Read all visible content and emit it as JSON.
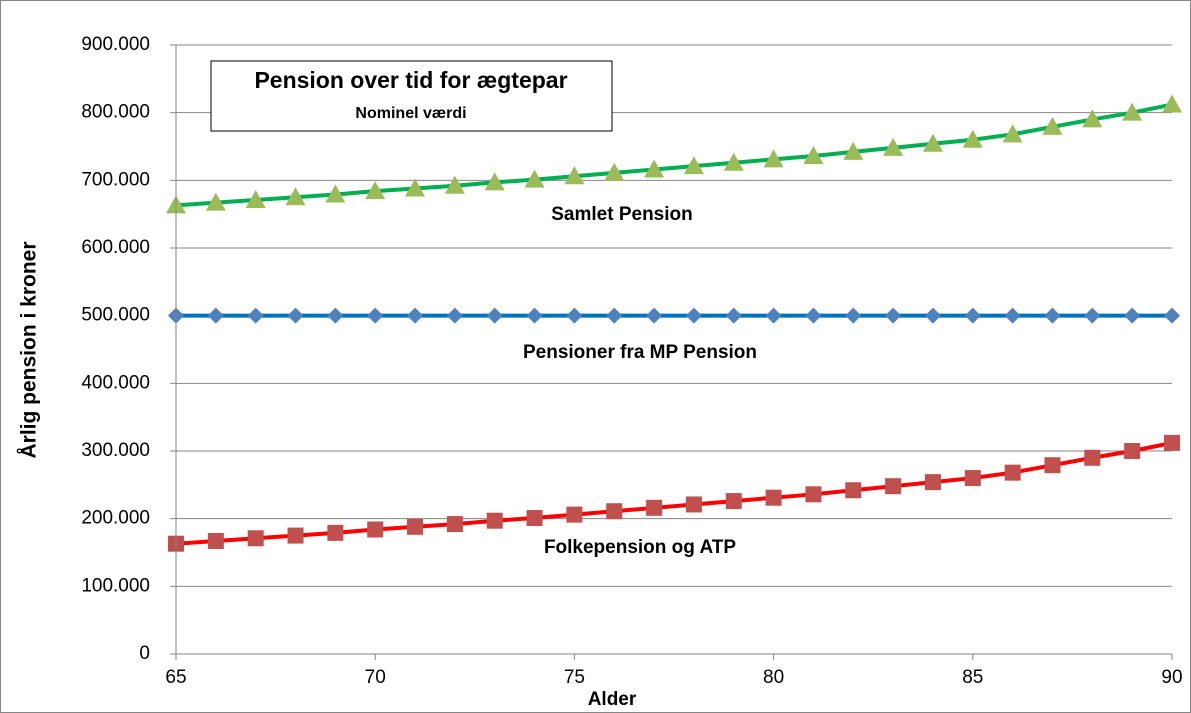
{
  "chart_data": {
    "type": "line",
    "title": "Pension over tid for ægtepar",
    "subtitle": "Nominel værdi",
    "x_label": "Alder",
    "y_label": "Årlig pension i kroner",
    "x": [
      65,
      66,
      67,
      68,
      69,
      70,
      71,
      72,
      73,
      74,
      75,
      76,
      77,
      78,
      79,
      80,
      81,
      82,
      83,
      84,
      85,
      86,
      87,
      88,
      89,
      90
    ],
    "xlim": [
      65,
      90
    ],
    "xticks": [
      65,
      70,
      75,
      80,
      85,
      90
    ],
    "ylim": [
      0,
      900000
    ],
    "yticks": [
      0,
      {
        "value": 100000,
        "label": "100.000"
      },
      {
        "value": 200000,
        "label": "200.000"
      },
      {
        "value": 300000,
        "label": "300.000"
      },
      {
        "value": 400000,
        "label": "400.000"
      },
      {
        "value": 500000,
        "label": "500.000"
      },
      {
        "value": 600000,
        "label": "600.000"
      },
      {
        "value": 700000,
        "label": "700.000"
      },
      {
        "value": 800000,
        "label": "800.000"
      },
      {
        "value": 900000,
        "label": "900.000"
      }
    ],
    "grid": true,
    "series": [
      {
        "name": "Samlet Pension",
        "color": "#00b050",
        "marker_color": "#9bbb59",
        "marker": "triangle",
        "values": [
          663000,
          667000,
          671000,
          675000,
          679000,
          684000,
          688000,
          692000,
          697000,
          701000,
          706000,
          711000,
          716000,
          721000,
          726000,
          731000,
          736000,
          742000,
          748000,
          754000,
          760000,
          768000,
          779000,
          790000,
          800000,
          812000
        ]
      },
      {
        "name": "Pensioner fra MP Pension",
        "color": "#0070c0",
        "marker_color": "#4f81bd",
        "marker": "diamond",
        "values": [
          500000,
          500000,
          500000,
          500000,
          500000,
          500000,
          500000,
          500000,
          500000,
          500000,
          500000,
          500000,
          500000,
          500000,
          500000,
          500000,
          500000,
          500000,
          500000,
          500000,
          500000,
          500000,
          500000,
          500000,
          500000,
          500000
        ]
      },
      {
        "name": "Folkepension og ATP",
        "color": "#ff0000",
        "marker_color": "#c0504d",
        "marker": "square",
        "values": [
          163000,
          167000,
          171000,
          175000,
          179000,
          184000,
          188000,
          192000,
          197000,
          201000,
          206000,
          211000,
          216000,
          221000,
          226000,
          231000,
          236000,
          242000,
          248000,
          254000,
          260000,
          268000,
          279000,
          290000,
          300000,
          312000
        ]
      }
    ]
  }
}
